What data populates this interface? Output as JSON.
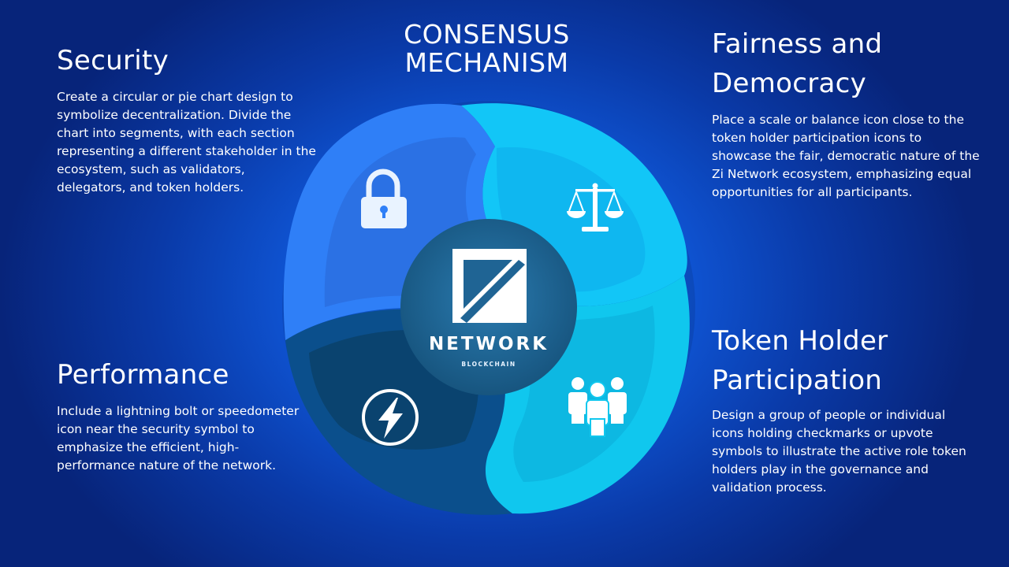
{
  "title": {
    "line1": "CONSENSUS",
    "line2": "MECHANISM"
  },
  "center": {
    "brand": "NETWORK",
    "sub": "BLOCKCHAIN"
  },
  "blocks": {
    "security": {
      "heading": "Security",
      "body": "Create a circular or pie chart design to symbolize decentralization. Divide the chart into segments, with each section representing a different stakeholder in the ecosystem, such as validators, delegators, and token holders."
    },
    "fairness": {
      "heading": "Fairness and Democracy",
      "body": "Place a scale or balance icon close to the token holder participation icons to showcase the fair, democratic nature of the Zi Network ecosystem, emphasizing equal opportunities for all participants."
    },
    "performance": {
      "heading": "Performance",
      "body": "Include a lightning bolt or speedometer icon near the security symbol to emphasize the efficient, high-performance nature of the network."
    },
    "token_holder": {
      "heading": "Token Holder Participation",
      "body": "Design a group of people or individual icons holding checkmarks or upvote symbols to illustrate the active role token holders play in the governance and validation process."
    }
  },
  "icons": {
    "security": "lock-icon",
    "fairness": "scale-icon",
    "performance": "lightning-bolt-icon",
    "token_holder": "people-group-icon",
    "logo": "z-network-logo"
  },
  "colors": {
    "security_segment": "#2f7ff7",
    "fairness_segment": "#12c6f7",
    "token_segment": "#10c7ee",
    "performance_segment": "#0b4f8c",
    "hub": "#1f6494"
  }
}
